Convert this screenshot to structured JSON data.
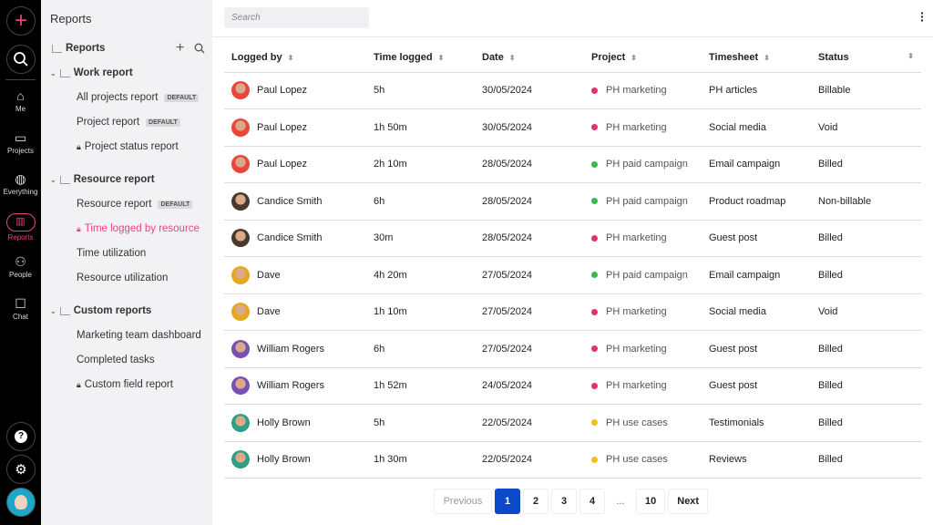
{
  "rail": {
    "items": [
      {
        "label": "Me",
        "icon": "home-icon"
      },
      {
        "label": "Projects",
        "icon": "folder-icon"
      },
      {
        "label": "Everything",
        "icon": "globe-icon"
      },
      {
        "label": "Reports",
        "icon": "bar-chart-icon",
        "active": true
      },
      {
        "label": "People",
        "icon": "people-icon"
      },
      {
        "label": "Chat",
        "icon": "chat-icon"
      }
    ]
  },
  "sidebar": {
    "title": "Reports",
    "root": "Reports",
    "groups": [
      {
        "label": "Work report",
        "items": [
          {
            "label": "All projects report",
            "badge": "DEFAULT"
          },
          {
            "label": "Project report",
            "badge": "DEFAULT"
          },
          {
            "label": "Project status report",
            "locked": true
          }
        ]
      },
      {
        "label": "Resource report",
        "items": [
          {
            "label": "Resource report",
            "badge": "DEFAULT"
          },
          {
            "label": "Time logged by resource",
            "locked": true,
            "active": true
          },
          {
            "label": "Time utilization"
          },
          {
            "label": "Resource utilization"
          }
        ]
      },
      {
        "label": "Custom reports",
        "items": [
          {
            "label": "Marketing team dashboard"
          },
          {
            "label": "Completed tasks"
          },
          {
            "label": "Custom field report",
            "locked": true
          }
        ]
      }
    ]
  },
  "search": {
    "placeholder": "Search"
  },
  "table": {
    "columns": [
      "Logged by",
      "Time logged",
      "Date",
      "Project",
      "Timesheet",
      "Status"
    ],
    "rows": [
      [
        "Paul Lopez",
        "5h",
        "30/05/2024",
        "PH marketing",
        "PH articles",
        "Billable"
      ],
      [
        "Paul Lopez",
        "1h 50m",
        "30/05/2024",
        "PH marketing",
        "Social media",
        "Void"
      ],
      [
        "Paul Lopez",
        "2h 10m",
        "28/05/2024",
        "PH paid campaign",
        "Email campaign",
        "Billed"
      ],
      [
        "Candice Smith",
        "6h",
        "28/05/2024",
        "PH paid campaign",
        "Product roadmap",
        "Non-billable"
      ],
      [
        "Candice Smith",
        "30m",
        "28/05/2024",
        "PH marketing",
        "Guest post",
        "Billed"
      ],
      [
        "Dave",
        "4h 20m",
        "27/05/2024",
        "PH paid campaign",
        "Email campaign",
        "Billed"
      ],
      [
        "Dave",
        "1h 10m",
        "27/05/2024",
        "PH marketing",
        "Social media",
        "Void"
      ],
      [
        "William Rogers",
        "6h",
        "27/05/2024",
        "PH marketing",
        "Guest post",
        "Billed"
      ],
      [
        "William Rogers",
        "1h 52m",
        "24/05/2024",
        "PH marketing",
        "Guest post",
        "Billed"
      ],
      [
        "Holly Brown",
        "5h",
        "22/05/2024",
        "PH use cases",
        "Testimonials",
        "Billed"
      ],
      [
        "Holly Brown",
        "1h 30m",
        "22/05/2024",
        "PH use cases",
        "Reviews",
        "Billed"
      ]
    ]
  },
  "project_colors": {
    "PH marketing": "#e5306b",
    "PH paid campaign": "#3cb84a",
    "PH use cases": "#f2c014"
  },
  "avatar_colors": {
    "Paul Lopez": "#e8473a",
    "Candice Smith": "#4a3a2e",
    "Dave": "#e6a822",
    "William Rogers": "#7a4fb5",
    "Holly Brown": "#2f9f83"
  },
  "pagination": {
    "previous": "Previous",
    "pages": [
      "1",
      "2",
      "3",
      "4",
      "...",
      "10"
    ],
    "current": "1",
    "next": "Next"
  }
}
